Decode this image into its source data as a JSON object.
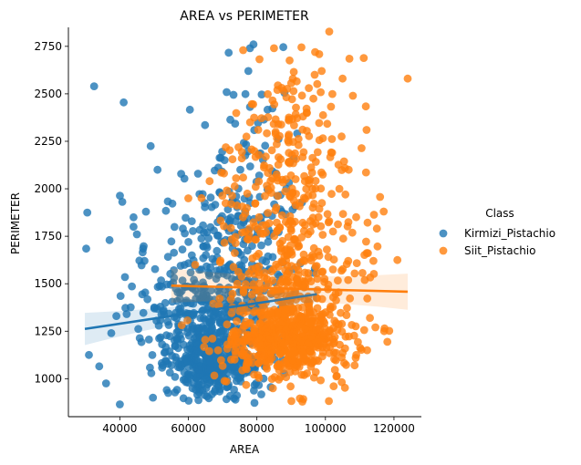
{
  "chart_data": {
    "type": "scatter",
    "title": "AREA vs PERIMETER",
    "xlabel": "AREA",
    "ylabel": "PERIMETER",
    "xlim": [
      25000,
      128000
    ],
    "ylim": [
      800,
      2850
    ],
    "xticks": [
      40000,
      60000,
      80000,
      100000,
      120000
    ],
    "yticks": [
      1000,
      1250,
      1500,
      1750,
      2000,
      2250,
      2500,
      2750
    ],
    "grid": false,
    "legend": {
      "title": "Class",
      "placement": "right"
    },
    "series": [
      {
        "name": "Kirmizi_Pistachio",
        "color": "#1f77b4",
        "regression": {
          "x": [
            29800,
            97500
          ],
          "y": [
            1262,
            1445
          ],
          "ci_halfwidth_ends": [
            85,
            40
          ]
        },
        "clusters": [
          {
            "cx": 68000,
            "cy": 1080,
            "sx": 6500,
            "sy": 90,
            "n": 420
          },
          {
            "cx": 66000,
            "cy": 1300,
            "sx": 8000,
            "sy": 140,
            "n": 200
          },
          {
            "cx": 72000,
            "cy": 1650,
            "sx": 9000,
            "sy": 250,
            "n": 220
          },
          {
            "cx": 76000,
            "cy": 2150,
            "sx": 9000,
            "sy": 250,
            "n": 60
          },
          {
            "cx": 55000,
            "cy": 1400,
            "sx": 9000,
            "sy": 300,
            "n": 50
          }
        ],
        "points": [
          {
            "x": 32500,
            "y": 2540
          },
          {
            "x": 30500,
            "y": 1875
          },
          {
            "x": 30200,
            "y": 1685
          },
          {
            "x": 37000,
            "y": 1730
          },
          {
            "x": 41500,
            "y": 1535
          },
          {
            "x": 44000,
            "y": 1850
          },
          {
            "x": 44000,
            "y": 1800
          },
          {
            "x": 45000,
            "y": 1760
          },
          {
            "x": 31000,
            "y": 1125
          },
          {
            "x": 34000,
            "y": 1065
          },
          {
            "x": 36000,
            "y": 975
          },
          {
            "x": 37500,
            "y": 1240
          },
          {
            "x": 40000,
            "y": 865
          },
          {
            "x": 39000,
            "y": 1330
          },
          {
            "x": 42000,
            "y": 1340
          },
          {
            "x": 49000,
            "y": 2225
          },
          {
            "x": 51000,
            "y": 2100
          },
          {
            "x": 78000,
            "y": 2740
          },
          {
            "x": 79000,
            "y": 2760
          },
          {
            "x": 77500,
            "y": 2620
          }
        ]
      },
      {
        "name": "Siit_Pistachio",
        "color": "#ff7f0e",
        "regression": {
          "x": [
            55000,
            124000
          ],
          "y": [
            1490,
            1458
          ],
          "ci_halfwidth_ends": [
            90,
            95
          ]
        },
        "clusters": [
          {
            "cx": 88000,
            "cy": 1200,
            "sx": 9000,
            "sy": 90,
            "n": 480
          },
          {
            "cx": 90000,
            "cy": 1400,
            "sx": 10000,
            "sy": 150,
            "n": 180
          },
          {
            "cx": 88000,
            "cy": 1900,
            "sx": 9500,
            "sy": 260,
            "n": 260
          },
          {
            "cx": 90000,
            "cy": 2400,
            "sx": 8000,
            "sy": 170,
            "n": 60
          },
          {
            "cx": 102000,
            "cy": 1500,
            "sx": 9000,
            "sy": 400,
            "n": 50
          }
        ],
        "points": [
          {
            "x": 124000,
            "y": 2580
          },
          {
            "x": 107000,
            "y": 2685
          },
          {
            "x": 112000,
            "y": 2310
          },
          {
            "x": 113000,
            "y": 1320
          },
          {
            "x": 117000,
            "y": 1880
          },
          {
            "x": 121000,
            "y": 1625
          },
          {
            "x": 109000,
            "y": 1125
          },
          {
            "x": 108000,
            "y": 2490
          },
          {
            "x": 105000,
            "y": 2580
          },
          {
            "x": 93000,
            "y": 2745
          },
          {
            "x": 85000,
            "y": 2740
          },
          {
            "x": 97000,
            "y": 2720
          },
          {
            "x": 76000,
            "y": 2730
          },
          {
            "x": 60000,
            "y": 1950
          },
          {
            "x": 62000,
            "y": 1600
          }
        ]
      }
    ]
  }
}
